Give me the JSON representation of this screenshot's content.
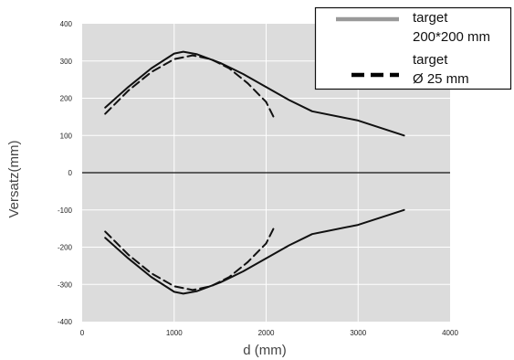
{
  "chart_data": {
    "type": "line",
    "xlabel": "d (mm)",
    "ylabel": "Versatz(mm)",
    "xlim": [
      0,
      4000
    ],
    "ylim": [
      -400,
      400
    ],
    "x_ticks": [
      "0",
      "1000",
      "2000",
      "3000",
      "4000"
    ],
    "y_ticks": [
      "400",
      "300",
      "200",
      "100",
      "0",
      "-100",
      "-200",
      "-300",
      "-400"
    ],
    "grid": true,
    "plot_background": "#dcdcdc",
    "legend": {
      "placement": "top-right",
      "entries": [
        {
          "label_line1": "target",
          "label_line2": "200*200 mm",
          "color": "#999999",
          "style": "solid"
        },
        {
          "label_line1": "target",
          "label_line2": "Ø 25 mm",
          "color": "#000000",
          "style": "dashed"
        }
      ]
    },
    "series": [
      {
        "style": "solid",
        "color": "#111111",
        "legend_index": 0,
        "x": [
          250,
          500,
          750,
          1000,
          1100,
          1250,
          1500,
          1750,
          2000,
          2250,
          2500,
          3000,
          3500
        ],
        "y": [
          175,
          230,
          280,
          320,
          325,
          318,
          295,
          265,
          230,
          195,
          165,
          140,
          100
        ]
      },
      {
        "style": "solid",
        "color": "#111111",
        "legend_index": 0,
        "x": [
          250,
          500,
          750,
          1000,
          1100,
          1250,
          1500,
          1750,
          2000,
          2250,
          2500,
          3000,
          3500
        ],
        "y": [
          -175,
          -230,
          -280,
          -320,
          -325,
          -318,
          -295,
          -265,
          -230,
          -195,
          -165,
          -140,
          -100
        ]
      },
      {
        "style": "dashed",
        "color": "#111111",
        "legend_index": 1,
        "x": [
          250,
          500,
          750,
          1000,
          1200,
          1400,
          1600,
          1800,
          2000,
          2100
        ],
        "y": [
          158,
          220,
          270,
          305,
          315,
          305,
          280,
          240,
          190,
          140
        ]
      },
      {
        "style": "dashed",
        "color": "#111111",
        "legend_index": 1,
        "x": [
          250,
          500,
          750,
          1000,
          1200,
          1400,
          1600,
          1800,
          2000,
          2100
        ],
        "y": [
          -158,
          -220,
          -270,
          -305,
          -315,
          -305,
          -280,
          -240,
          -190,
          -140
        ]
      }
    ]
  }
}
